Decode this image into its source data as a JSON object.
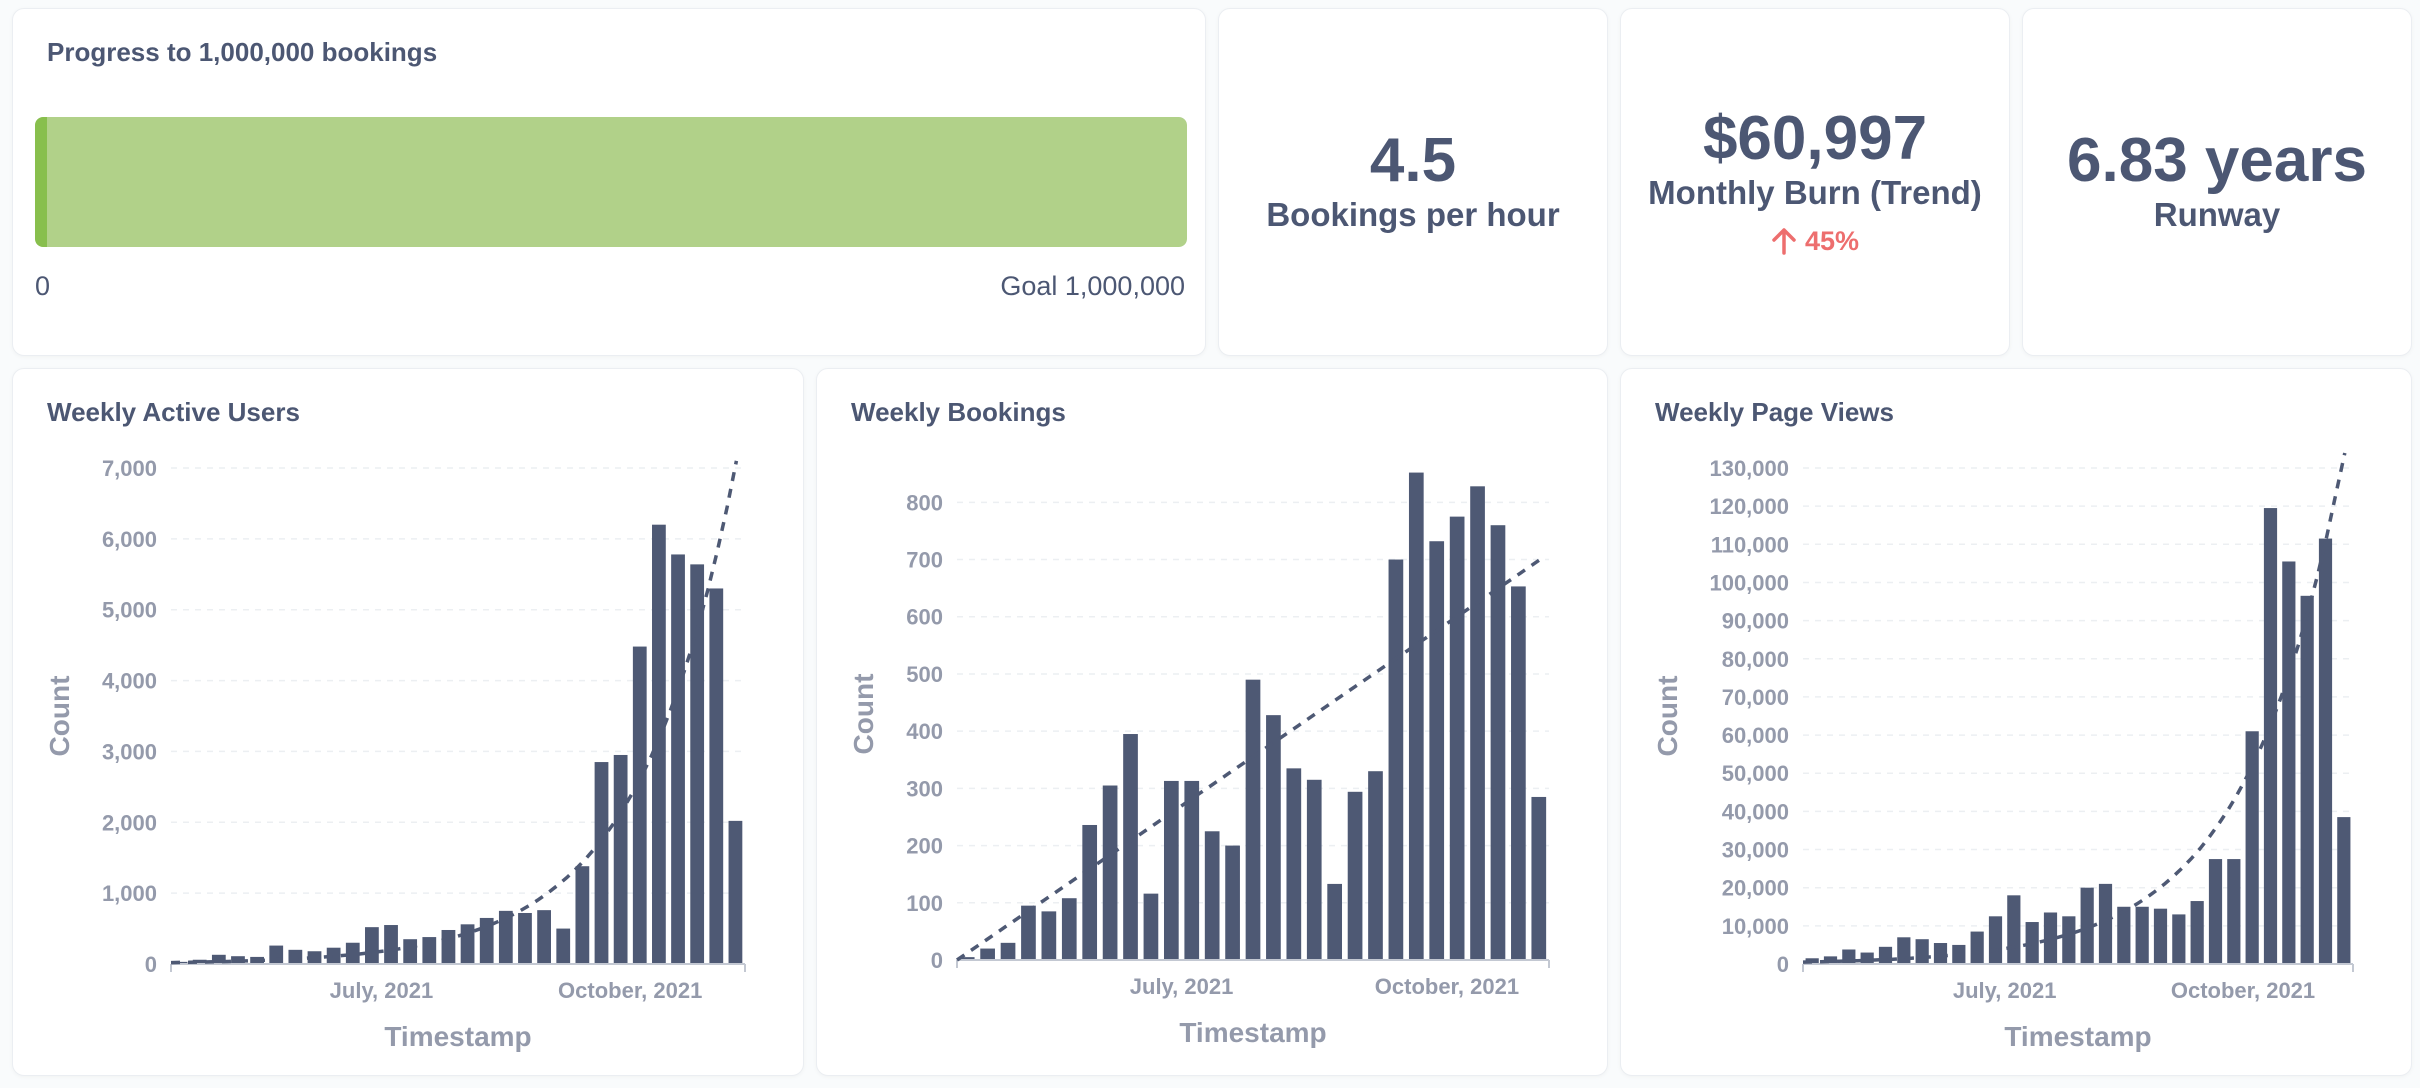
{
  "colors": {
    "bar": "#4e5974",
    "progress_fill": "#b1d189",
    "progress_edge": "#88bf4d",
    "trend_up": "#ed6e6e",
    "text": "#4c5773",
    "axis": "#949aab"
  },
  "progress": {
    "title": "Progress to 1,000,000 bookings",
    "min_label": "0",
    "goal_label": "Goal 1,000,000",
    "fraction": 1.0
  },
  "scalars": [
    {
      "value": "4.5",
      "label": "Bookings per hour"
    },
    {
      "value": "$60,997",
      "label": "Monthly Burn (Trend)",
      "trend": "45%",
      "trend_icon": "arrow-up-icon"
    },
    {
      "value": "6.83 years",
      "label": "Runway"
    }
  ],
  "chart_data": [
    {
      "type": "bar",
      "title": "Weekly Active Users",
      "xlabel": "Timestamp",
      "ylabel": "Count",
      "ylim": [
        0,
        7000
      ],
      "yticks": [
        0,
        1000,
        2000,
        3000,
        4000,
        5000,
        6000,
        7000
      ],
      "ytick_labels": [
        "0",
        "1,000",
        "2,000",
        "3,000",
        "4,000",
        "5,000",
        "6,000",
        "7,000"
      ],
      "xtick_labels": [
        {
          "label": "July, 2021",
          "index": 10.5
        },
        {
          "label": "October, 2021",
          "index": 23.5
        }
      ],
      "values": [
        30,
        60,
        130,
        110,
        100,
        260,
        200,
        180,
        230,
        300,
        520,
        550,
        350,
        380,
        480,
        560,
        650,
        750,
        720,
        760,
        500,
        1380,
        2850,
        2950,
        4480,
        6200,
        5780,
        5640,
        5300,
        2020
      ],
      "trendline": {
        "kind": "exponential",
        "start": 20,
        "end": 7100
      }
    },
    {
      "type": "bar",
      "title": "Weekly Bookings",
      "xlabel": "Timestamp",
      "ylabel": "Count",
      "ylim": [
        0,
        860
      ],
      "yticks": [
        0,
        100,
        200,
        300,
        400,
        500,
        600,
        700,
        800
      ],
      "ytick_labels": [
        "0",
        "100",
        "200",
        "300",
        "400",
        "500",
        "600",
        "700",
        "800"
      ],
      "xtick_labels": [
        {
          "label": "July, 2021",
          "index": 10.5
        },
        {
          "label": "October, 2021",
          "index": 23.5
        }
      ],
      "values": [
        5,
        20,
        30,
        95,
        85,
        108,
        236,
        305,
        395,
        116,
        313,
        313,
        225,
        200,
        490,
        428,
        335,
        315,
        133,
        294,
        330,
        700,
        852,
        732,
        775,
        828,
        760,
        653,
        285
      ],
      "trendline": {
        "kind": "linear",
        "start": 0,
        "end": 700
      }
    },
    {
      "type": "bar",
      "title": "Weekly Page Views",
      "xlabel": "Timestamp",
      "ylabel": "Count",
      "ylim": [
        0,
        130000
      ],
      "yticks": [
        0,
        10000,
        20000,
        30000,
        40000,
        50000,
        60000,
        70000,
        80000,
        90000,
        100000,
        110000,
        120000,
        130000
      ],
      "ytick_labels": [
        "0",
        "10,000",
        "20,000",
        "30,000",
        "40,000",
        "50,000",
        "60,000",
        "70,000",
        "80,000",
        "90,000",
        "100,000",
        "110,000",
        "120,000",
        "130,000"
      ],
      "xtick_labels": [
        {
          "label": "July, 2021",
          "index": 10.5
        },
        {
          "label": "October, 2021",
          "index": 23.5
        }
      ],
      "values": [
        1500,
        2000,
        3800,
        3000,
        4500,
        7000,
        6500,
        5500,
        5000,
        8500,
        12500,
        18000,
        11000,
        13500,
        12500,
        20000,
        21000,
        15000,
        15000,
        14500,
        13000,
        16500,
        27500,
        27500,
        61000,
        119500,
        105500,
        96500,
        111500,
        38500
      ],
      "trendline": {
        "kind": "exponential",
        "start": 500,
        "end": 135000
      }
    }
  ]
}
